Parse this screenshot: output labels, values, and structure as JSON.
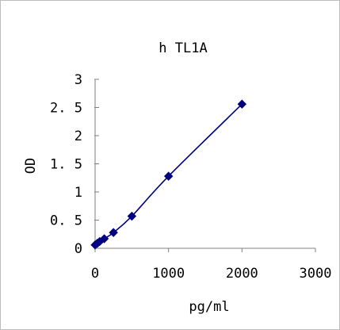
{
  "chart_data": {
    "type": "scatter",
    "title": "h TL1A",
    "xlabel": "pg/ml",
    "ylabel": "OD",
    "xlim": [
      0,
      3000
    ],
    "ylim": [
      0,
      3
    ],
    "x_ticks": [
      0,
      1000,
      2000,
      3000
    ],
    "x_tick_labels": [
      "0",
      "1000",
      "2000",
      "3000"
    ],
    "y_ticks": [
      0,
      0.5,
      1,
      1.5,
      2,
      2.5,
      3
    ],
    "y_tick_labels": [
      "0",
      "0. 5",
      "1",
      "1. 5",
      "2",
      "2. 5",
      "3"
    ],
    "grid": false,
    "legend": "none",
    "series": [
      {
        "x": [
          0,
          31.25,
          62.5,
          125,
          250,
          500,
          1000,
          2000
        ],
        "y": [
          0.06,
          0.09,
          0.12,
          0.17,
          0.28,
          0.57,
          1.28,
          2.56
        ],
        "marker": "diamond",
        "line": "smooth",
        "color": "#000080"
      }
    ]
  }
}
